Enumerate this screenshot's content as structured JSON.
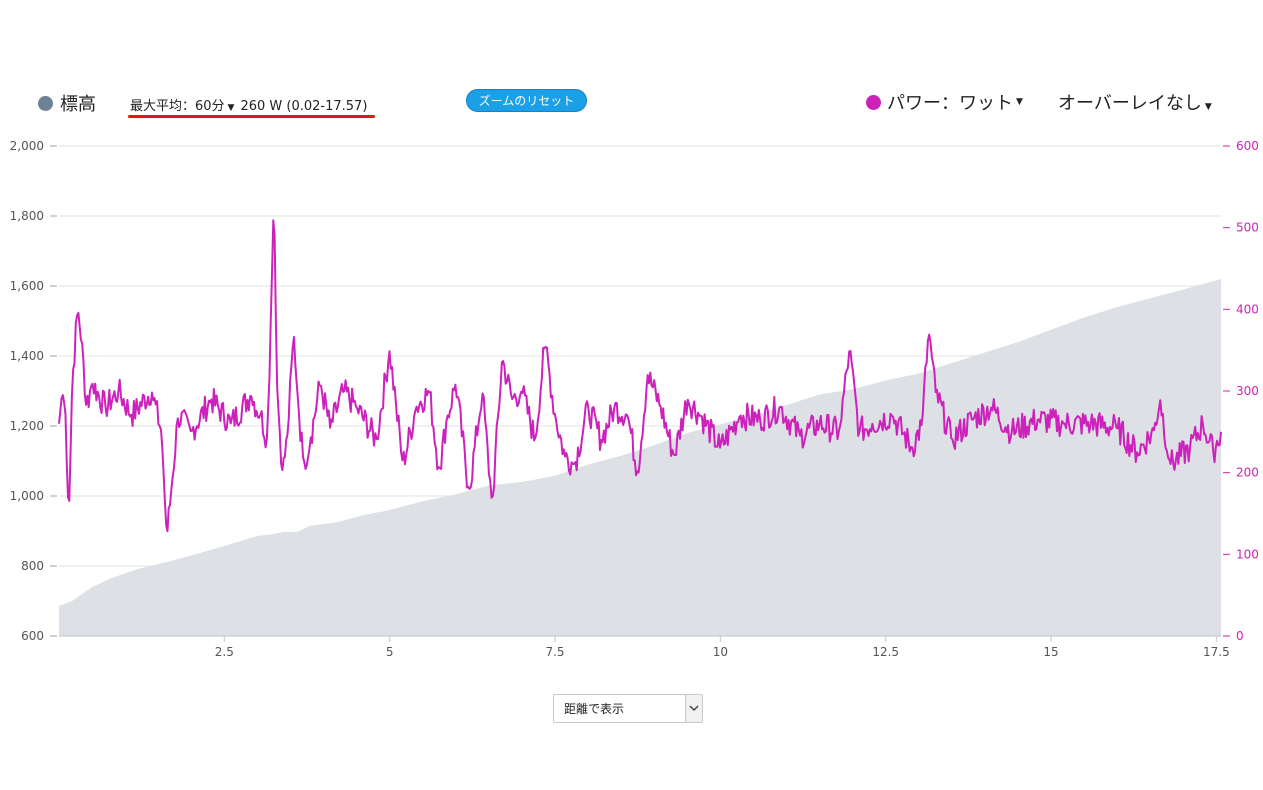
{
  "header": {
    "elevation_legend": "標高",
    "max_average": {
      "label": "最大平均：60分",
      "value": "260 W (0.02-17.57)"
    },
    "reset_zoom": "ズームのリセット",
    "power_legend": "パワー：ワット",
    "overlay": "オーバーレイなし"
  },
  "colors": {
    "elevation_fill": "#dde1e5",
    "elevation_dot": "#6d8295",
    "power": "#cc22bb",
    "grid": "#e3e3e3",
    "left_axis_text": "#555555",
    "right_axis_text": "#cc22bb",
    "underline": "#ee1111",
    "button": "#1b9fe7"
  },
  "footer": {
    "view_select": "距離で表示"
  },
  "chart_data": {
    "type": "area+line",
    "x_ticks": [
      "2.5",
      "5",
      "7.5",
      "10",
      "12.5",
      "15",
      "17.5"
    ],
    "left_axis_ticks": [
      "2,000",
      "1,800",
      "1,600",
      "1,400",
      "1,200",
      "1,000",
      "800",
      "600"
    ],
    "right_axis_ticks": [
      "600",
      "500",
      "400",
      "300",
      "200",
      "100",
      "0"
    ],
    "xlim": [
      0,
      17.57
    ],
    "ylim_left": [
      600,
      2000
    ],
    "ylim_right": [
      0,
      600
    ],
    "elevation": {
      "x": [
        0,
        0.2,
        0.5,
        0.8,
        1.2,
        1.6,
        2.0,
        2.5,
        3.0,
        3.2,
        3.4,
        3.6,
        3.8,
        4.2,
        4.6,
        5.0,
        5.5,
        6.0,
        6.5,
        7.0,
        7.5,
        8.0,
        8.5,
        9.0,
        9.5,
        10.0,
        10.5,
        11.0,
        11.5,
        12.0,
        12.5,
        13.0,
        13.5,
        14.0,
        14.5,
        15.0,
        15.5,
        16.0,
        16.5,
        17.0,
        17.57
      ],
      "y": [
        686,
        700,
        740,
        766,
        792,
        810,
        830,
        857,
        886,
        890,
        898,
        897,
        915,
        925,
        945,
        960,
        985,
        1005,
        1030,
        1040,
        1058,
        1090,
        1115,
        1145,
        1180,
        1205,
        1230,
        1260,
        1290,
        1305,
        1330,
        1350,
        1380,
        1410,
        1440,
        1475,
        1510,
        1540,
        1565,
        1590,
        1620
      ]
    },
    "power_anchors": {
      "x": [
        0,
        0.05,
        0.1,
        0.15,
        0.2,
        0.28,
        0.35,
        0.4,
        0.5,
        0.7,
        0.9,
        1.1,
        1.4,
        1.55,
        1.63,
        1.7,
        1.8,
        2.0,
        2.3,
        2.6,
        2.9,
        3.05,
        3.15,
        3.22,
        3.25,
        3.3,
        3.38,
        3.45,
        3.55,
        3.62,
        3.7,
        3.8,
        3.95,
        4.1,
        4.3,
        4.5,
        4.8,
        5.0,
        5.1,
        5.2,
        5.4,
        5.6,
        5.75,
        5.85,
        6.0,
        6.2,
        6.4,
        6.55,
        6.7,
        6.85,
        7.0,
        7.2,
        7.35,
        7.5,
        7.65,
        7.8,
        8.0,
        8.2,
        8.4,
        8.6,
        8.75,
        8.9,
        9.1,
        9.3,
        9.5,
        9.7,
        10.0,
        10.3,
        10.6,
        10.9,
        11.2,
        11.5,
        11.8,
        11.95,
        12.1,
        12.3,
        12.6,
        12.9,
        13.05,
        13.15,
        13.25,
        13.5,
        13.8,
        14.1,
        14.4,
        14.8,
        15.2,
        15.6,
        16.0,
        16.3,
        16.55,
        16.65,
        16.8,
        17.1,
        17.3,
        17.45,
        17.57
      ],
      "y": [
        260,
        300,
        270,
        145,
        310,
        400,
        360,
        280,
        310,
        280,
        300,
        270,
        300,
        250,
        120,
        180,
        270,
        250,
        290,
        260,
        295,
        270,
        240,
        440,
        540,
        300,
        200,
        240,
        370,
        280,
        210,
        240,
        310,
        255,
        300,
        280,
        240,
        350,
        280,
        210,
        280,
        300,
        200,
        260,
        310,
        175,
        300,
        160,
        340,
        290,
        300,
        240,
        360,
        270,
        220,
        210,
        280,
        240,
        280,
        270,
        200,
        320,
        280,
        220,
        290,
        270,
        230,
        270,
        265,
        280,
        245,
        260,
        250,
        350,
        250,
        260,
        270,
        230,
        260,
        375,
        300,
        240,
        265,
        280,
        250,
        265,
        260,
        260,
        255,
        225,
        250,
        290,
        210,
        230,
        260,
        225,
        250
      ]
    }
  }
}
